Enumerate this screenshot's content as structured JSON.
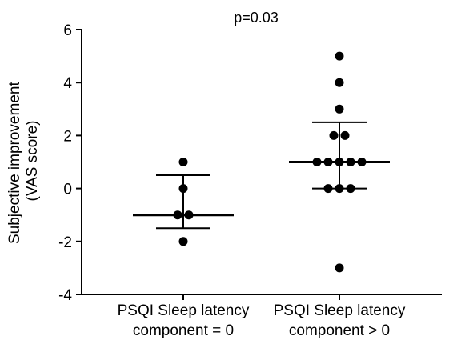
{
  "chart_data": {
    "type": "scatter",
    "annotation": "p=0.03",
    "ylabel_lines": [
      "Subjective improvement",
      "(VAS score)"
    ],
    "xlabel": "",
    "ylim": [
      -4,
      6
    ],
    "yticks": [
      6,
      4,
      2,
      0,
      -2,
      -4
    ],
    "ytick_labels": [
      "6",
      "4",
      "2",
      "0",
      "-2",
      "-4"
    ],
    "grid": false,
    "legend": "none",
    "categories": [
      {
        "id": "group-latency-zero",
        "label_lines": [
          "PSQI Sleep latency",
          "component = 0"
        ]
      },
      {
        "id": "group-latency-positive",
        "label_lines": [
          "PSQI Sleep latency",
          "component > 0"
        ]
      }
    ],
    "groups": [
      {
        "points": [
          1,
          0,
          -1,
          -1,
          -2
        ],
        "median": -1,
        "iqr": [
          -1.5,
          0.5
        ]
      },
      {
        "points": [
          5,
          4,
          3,
          2,
          2,
          1,
          1,
          1,
          1,
          1,
          0,
          0,
          0,
          -3
        ],
        "median": 1,
        "iqr": [
          0,
          2.5
        ]
      }
    ],
    "colors": {
      "points": "#000000",
      "lines": "#000000"
    }
  }
}
